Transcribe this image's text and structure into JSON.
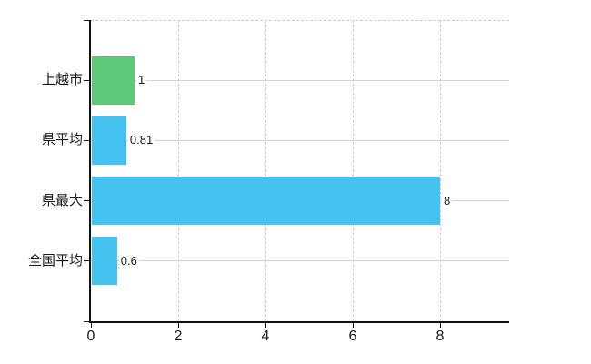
{
  "chart_data": {
    "type": "bar",
    "orientation": "horizontal",
    "title": "",
    "xlabel": "",
    "ylabel": "",
    "categories": [
      "上越市",
      "県平均",
      "県最大",
      "全国平均"
    ],
    "values": [
      1,
      0.81,
      8,
      0.6
    ],
    "value_labels": [
      "1",
      "0.81",
      "8",
      "0.6"
    ],
    "series": [
      {
        "name": "value",
        "values": [
          1,
          0.81,
          8,
          0.6
        ],
        "bar_colors": [
          "#5cc878",
          "#45c2f0",
          "#45c2f0",
          "#45c2f0"
        ]
      }
    ],
    "x_ticks": [
      0,
      2,
      4,
      6,
      8
    ],
    "x_tick_labels": [
      "0",
      "2",
      "4",
      "6",
      "8"
    ],
    "xlim": [
      0,
      9.58
    ],
    "legend": "none",
    "grid": {
      "vertical": "dashed light gray at each major x tick",
      "horizontal": "solid light gray at each category center",
      "top_border": "dashed light gray"
    },
    "colors": {
      "background": "#ffffff",
      "axis": "#111111",
      "grid_solid": "#d2d2d2",
      "grid_dashed": "#cfcfcf",
      "text": "#1a1a1a",
      "bar_green": "#5cc878",
      "bar_blue": "#45c2f0"
    }
  }
}
